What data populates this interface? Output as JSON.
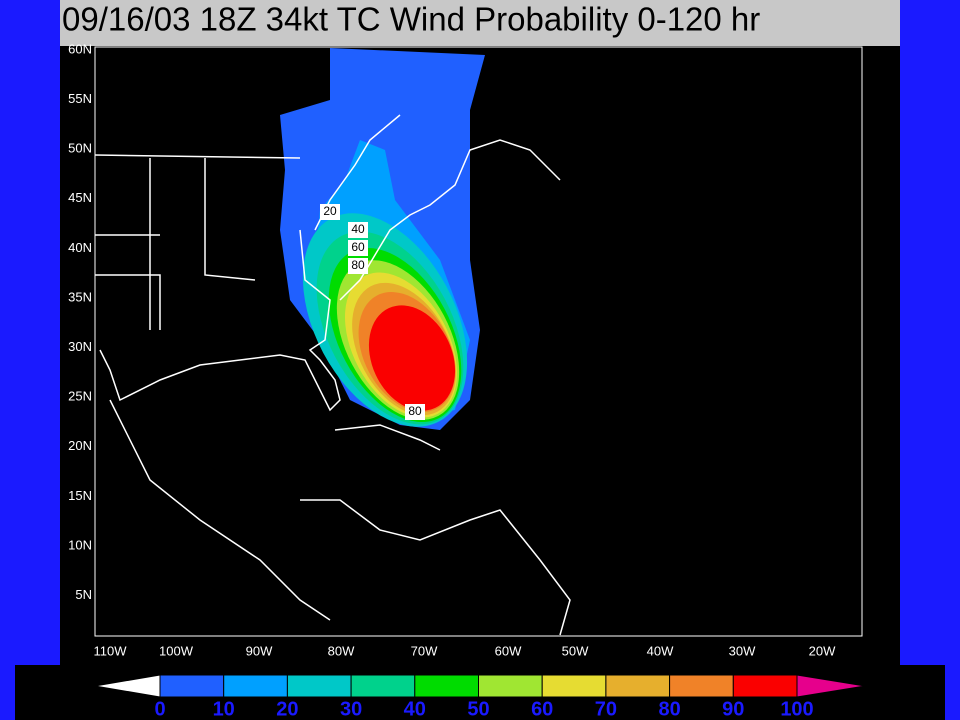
{
  "title": "09/16/03 18Z 34kt TC Wind Probability 0-120 hr",
  "lat_labels": [
    "60N",
    "55N",
    "50N",
    "45N",
    "40N",
    "35N",
    "30N",
    "25N",
    "20N",
    "15N",
    "10N",
    "5N"
  ],
  "lon_labels": [
    "110W",
    "100W",
    "90W",
    "80W",
    "70W",
    "60W",
    "50W",
    "40W",
    "30W",
    "20W"
  ],
  "contour_labels": [
    "20",
    "40",
    "60",
    "80",
    "80"
  ],
  "colorbar": {
    "labels": [
      0,
      10,
      20,
      30,
      40,
      50,
      60,
      70,
      80,
      90,
      100
    ],
    "colors": [
      "#2060ff",
      "#00a0ff",
      "#00c8c8",
      "#00d28c",
      "#00dc00",
      "#a0e632",
      "#e6dc32",
      "#e6af2d",
      "#f08228",
      "#fa0000"
    ],
    "under_color": "#ffffff",
    "over_color": "#e6008c"
  }
}
